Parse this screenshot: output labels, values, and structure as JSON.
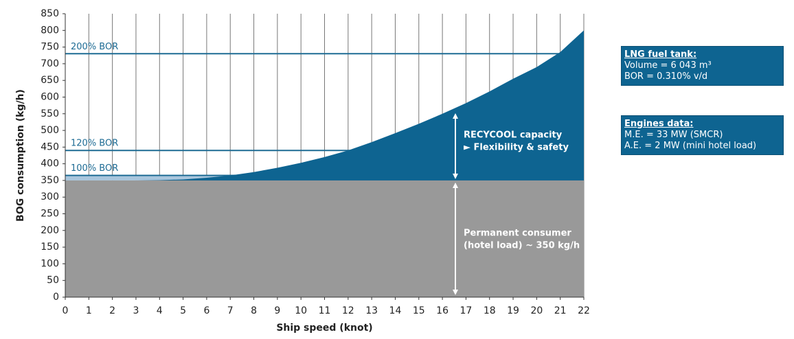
{
  "chart_data": {
    "type": "area",
    "x_label": "Ship speed (knot)",
    "y_label": "BOG consumption (kg/h)",
    "x": [
      0,
      1,
      2,
      3,
      4,
      5,
      6,
      7,
      8,
      9,
      10,
      11,
      12,
      13,
      14,
      15,
      16,
      17,
      18,
      19,
      20,
      21,
      22
    ],
    "series": [
      {
        "color": "#0e6491",
        "values": [
          350,
          350,
          350,
          350,
          351,
          353,
          358,
          365,
          375,
          388,
          403,
          420,
          440,
          465,
          492,
          520,
          550,
          582,
          617,
          655,
          690,
          735,
          800
        ]
      }
    ],
    "base": {
      "value": 350,
      "color": "#999999"
    },
    "reference_lines": [
      {
        "label": "200% BOR",
        "value": 730
      },
      {
        "label": "120% BOR",
        "value": 440
      },
      {
        "label": "100% BOR",
        "value": 365,
        "fill": "#a9c6dd"
      }
    ],
    "reference_color": "#1d6b94",
    "annotations": [
      {
        "lines": [
          "RECYCOOL capacity",
          "► Flexibility & safety"
        ]
      },
      {
        "lines": [
          "Permanent consumer",
          "(hotel load) ~ 350 kg/h"
        ]
      }
    ],
    "xlim": [
      0,
      22
    ],
    "xticks": [
      0,
      1,
      2,
      3,
      4,
      5,
      6,
      7,
      8,
      9,
      10,
      11,
      12,
      13,
      14,
      15,
      16,
      17,
      18,
      19,
      20,
      21,
      22
    ],
    "ylim": [
      0,
      850
    ],
    "yticks": [
      0,
      50,
      100,
      150,
      200,
      250,
      300,
      350,
      400,
      450,
      500,
      550,
      600,
      650,
      700,
      750,
      800,
      850
    ],
    "grid": "x"
  },
  "info_boxes": [
    {
      "title": "LNG fuel tank:",
      "lines": [
        "Volume = 6 043 m³",
        "BOR = 0.310% v/d"
      ]
    },
    {
      "title": "Engines data:",
      "lines": [
        "M.E. = 33 MW (SMCR)",
        "A.E. = 2 MW (mini hotel load)"
      ]
    }
  ]
}
